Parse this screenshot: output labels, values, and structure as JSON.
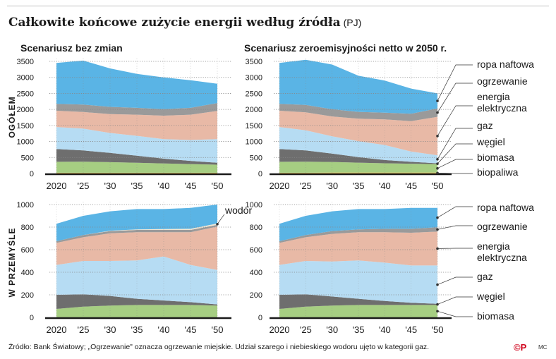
{
  "title": "Całkowite końcowe zużycie energii według źródła",
  "title_unit": "(PJ)",
  "footer": "Źródło: Bank Światowy; „Ogrzewanie\" oznacza ogrzewanie miejskie. Udział szarego i niebieskiego wodoru ujęto w kategorii gaz.",
  "logo": "©P",
  "author": "MC",
  "row_labels": [
    "OGÓŁEM",
    "W PRZEMYŚLE"
  ],
  "colors": {
    "biopaliwa": "#e7c65a",
    "biomasa": "#a6ce82",
    "wegiel": "#6e6e6e",
    "gaz": "#b6dcf3",
    "energia_elektryczna": "#e8b9a6",
    "wodor": "#f1e7d4",
    "ogrzewanie": "#9a9a9a",
    "ropa_naftowa": "#5ab4e5",
    "baseline": "#1a1a1a",
    "grid": "#888888"
  },
  "chart_data": [
    {
      "type": "area",
      "stacked": true,
      "title": "Scenariusz bez zmian",
      "row": "OGÓŁEM",
      "x": [
        2020,
        2025,
        2030,
        2035,
        2040,
        2045,
        2050
      ],
      "xtick_labels": [
        "2020",
        "'25",
        "'30",
        "'35",
        "'40",
        "'45",
        "'50"
      ],
      "ylim": [
        0,
        3500
      ],
      "yticks": [
        0,
        500,
        1000,
        1500,
        2000,
        2500,
        3000,
        3500
      ],
      "grid": true,
      "series": [
        {
          "key": "biopaliwa",
          "values": [
            25,
            25,
            25,
            25,
            25,
            25,
            25
          ]
        },
        {
          "key": "biomasa",
          "values": [
            340,
            345,
            330,
            310,
            290,
            270,
            250
          ]
        },
        {
          "key": "wegiel",
          "values": [
            400,
            350,
            290,
            220,
            150,
            100,
            60
          ]
        },
        {
          "key": "gaz",
          "values": [
            685,
            680,
            620,
            620,
            610,
            650,
            740
          ]
        },
        {
          "key": "energia_elektryczna",
          "values": [
            510,
            520,
            590,
            660,
            730,
            790,
            880
          ]
        },
        {
          "key": "ogrzewanie",
          "values": [
            215,
            230,
            225,
            215,
            205,
            215,
            245
          ]
        },
        {
          "key": "ropa_naftowa",
          "values": [
            1275,
            1375,
            1200,
            1060,
            990,
            860,
            600
          ]
        }
      ]
    },
    {
      "type": "area",
      "stacked": true,
      "title": "Scenariusz zeroemisyjności netto w 2050 r.",
      "row": "OGÓŁEM",
      "x": [
        2020,
        2025,
        2030,
        2035,
        2040,
        2045,
        2050
      ],
      "xtick_labels": [
        "2020",
        "'25",
        "'30",
        "'35",
        "'40",
        "'45",
        "'50"
      ],
      "ylim": [
        0,
        3500
      ],
      "yticks": [
        0,
        500,
        1000,
        1500,
        2000,
        2500,
        3000,
        3500
      ],
      "grid": true,
      "series": [
        {
          "key": "biopaliwa",
          "values": [
            25,
            25,
            30,
            30,
            30,
            30,
            30
          ]
        },
        {
          "key": "biomasa",
          "values": [
            340,
            345,
            330,
            310,
            290,
            275,
            260
          ]
        },
        {
          "key": "wegiel",
          "values": [
            400,
            350,
            260,
            170,
            100,
            60,
            30
          ]
        },
        {
          "key": "gaz",
          "values": [
            685,
            630,
            540,
            500,
            470,
            320,
            250
          ]
        },
        {
          "key": "energia_elektryczna",
          "values": [
            510,
            560,
            620,
            700,
            800,
            950,
            1200
          ]
        },
        {
          "key": "ogrzewanie",
          "values": [
            215,
            230,
            225,
            215,
            210,
            230,
            260
          ]
        },
        {
          "key": "ropa_naftowa",
          "values": [
            1275,
            1410,
            1395,
            1125,
            1000,
            785,
            470
          ]
        }
      ]
    },
    {
      "type": "area",
      "stacked": true,
      "title": "",
      "row": "W PRZEMYŚLE",
      "x": [
        2020,
        2025,
        2030,
        2035,
        2040,
        2045,
        2050
      ],
      "xtick_labels": [
        "2020",
        "'25",
        "'30",
        "'35",
        "'40",
        "'45",
        "'50"
      ],
      "ylim": [
        0,
        1000
      ],
      "yticks": [
        0,
        200,
        400,
        600,
        800,
        1000
      ],
      "grid": true,
      "series": [
        {
          "key": "biomasa",
          "values": [
            75,
            95,
            105,
            110,
            110,
            110,
            105
          ]
        },
        {
          "key": "wegiel",
          "values": [
            125,
            110,
            85,
            55,
            40,
            25,
            10
          ]
        },
        {
          "key": "gaz",
          "values": [
            265,
            295,
            310,
            340,
            390,
            330,
            305
          ]
        },
        {
          "key": "energia_elektryczna",
          "values": [
            195,
            210,
            245,
            250,
            215,
            290,
            385
          ]
        },
        {
          "key": "ogrzewanie",
          "values": [
            15,
            20,
            20,
            20,
            20,
            20,
            15
          ]
        },
        {
          "key": "wodor",
          "values": [
            0,
            0,
            3,
            5,
            8,
            10,
            12
          ]
        },
        {
          "key": "ropa_naftowa",
          "values": [
            155,
            170,
            172,
            180,
            177,
            185,
            168
          ]
        }
      ],
      "annotation": "wodór"
    },
    {
      "type": "area",
      "stacked": true,
      "title": "",
      "row": "W PRZEMYŚLE",
      "x": [
        2020,
        2025,
        2030,
        2035,
        2040,
        2045,
        2050
      ],
      "xtick_labels": [
        "2020",
        "'25",
        "'30",
        "'35",
        "'40",
        "'45",
        "'50"
      ],
      "ylim": [
        0,
        1000
      ],
      "yticks": [
        0,
        200,
        400,
        600,
        800,
        1000
      ],
      "grid": true,
      "series": [
        {
          "key": "biomasa",
          "values": [
            75,
            95,
            105,
            110,
            110,
            110,
            110
          ]
        },
        {
          "key": "wegiel",
          "values": [
            125,
            110,
            80,
            55,
            35,
            20,
            10
          ]
        },
        {
          "key": "gaz",
          "values": [
            265,
            295,
            310,
            340,
            340,
            330,
            340
          ]
        },
        {
          "key": "energia_elektryczna",
          "values": [
            195,
            210,
            245,
            250,
            270,
            290,
            300
          ]
        },
        {
          "key": "ogrzewanie",
          "values": [
            15,
            20,
            25,
            25,
            30,
            35,
            38
          ]
        },
        {
          "key": "ropa_naftowa",
          "values": [
            155,
            170,
            175,
            180,
            175,
            185,
            172
          ]
        }
      ]
    }
  ],
  "legend_top": [
    {
      "label": "ropa naftowa",
      "key": "ropa_naftowa"
    },
    {
      "label": "ogrzewanie",
      "key": "ogrzewanie"
    },
    {
      "label": "energia\nelektryczna",
      "key": "energia_elektryczna"
    },
    {
      "label": "gaz",
      "key": "gaz"
    },
    {
      "label": "węgiel",
      "key": "wegiel"
    },
    {
      "label": "biomasa",
      "key": "biomasa"
    },
    {
      "label": "biopaliwa",
      "key": "biopaliwa"
    }
  ],
  "legend_bottom": [
    {
      "label": "ropa naftowa",
      "key": "ropa_naftowa"
    },
    {
      "label": "ogrzewanie",
      "key": "ogrzewanie"
    },
    {
      "label": "energia\nelektryczna",
      "key": "energia_elektryczna"
    },
    {
      "label": "gaz",
      "key": "gaz"
    },
    {
      "label": "węgiel",
      "key": "wegiel"
    },
    {
      "label": "biomasa",
      "key": "biomasa"
    }
  ]
}
